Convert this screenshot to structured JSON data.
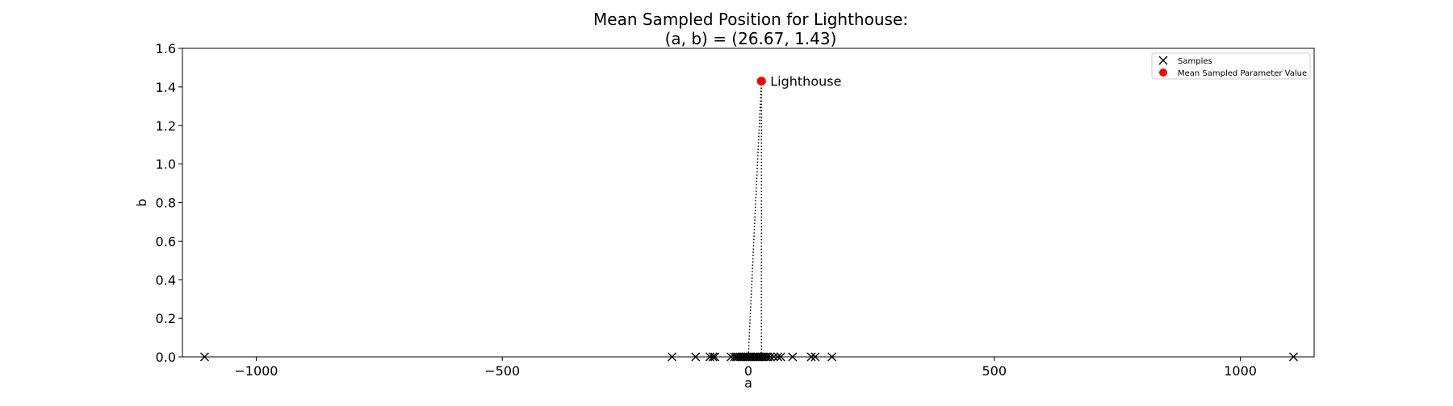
{
  "chart_data": {
    "type": "scatter",
    "title": [
      "Mean Sampled Position for Lighthouse:",
      "(a, b) = (26.67, 1.43)"
    ],
    "xlabel": "a",
    "ylabel": "b",
    "xlim": [
      -1150,
      1150
    ],
    "ylim": [
      0.0,
      1.6
    ],
    "x_ticks": [
      -1000,
      -500,
      0,
      500,
      1000
    ],
    "x_tick_labels": [
      "−1000",
      "−500",
      "0",
      "500",
      "1000"
    ],
    "y_ticks": [
      0.0,
      0.2,
      0.4,
      0.6,
      0.8,
      1.0,
      1.2,
      1.4,
      1.6
    ],
    "y_tick_labels": [
      "0.0",
      "0.2",
      "0.4",
      "0.6",
      "0.8",
      "1.0",
      "1.2",
      "1.4",
      "1.6"
    ],
    "grid": false,
    "legend": {
      "placement": "top-right",
      "entries": [
        "Samples",
        "Mean Sampled Parameter Value"
      ]
    },
    "series": [
      {
        "name": "Samples",
        "marker": "x",
        "color": "#000000",
        "points": [
          {
            "x": -1105,
            "y": 0
          },
          {
            "x": -155,
            "y": 0
          },
          {
            "x": -107,
            "y": 0
          },
          {
            "x": -78,
            "y": 0
          },
          {
            "x": -72,
            "y": 0
          },
          {
            "x": -68,
            "y": 0
          },
          {
            "x": -35,
            "y": 0
          },
          {
            "x": -28,
            "y": 0
          },
          {
            "x": -24,
            "y": 0
          },
          {
            "x": -20,
            "y": 0
          },
          {
            "x": -16,
            "y": 0
          },
          {
            "x": -12,
            "y": 0
          },
          {
            "x": -8,
            "y": 0
          },
          {
            "x": -4,
            "y": 0
          },
          {
            "x": 0,
            "y": 0
          },
          {
            "x": 4,
            "y": 0
          },
          {
            "x": 8,
            "y": 0
          },
          {
            "x": 12,
            "y": 0
          },
          {
            "x": 16,
            "y": 0
          },
          {
            "x": 20,
            "y": 0
          },
          {
            "x": 24,
            "y": 0
          },
          {
            "x": 28,
            "y": 0
          },
          {
            "x": 32,
            "y": 0
          },
          {
            "x": 36,
            "y": 0
          },
          {
            "x": 40,
            "y": 0
          },
          {
            "x": 45,
            "y": 0
          },
          {
            "x": 52,
            "y": 0
          },
          {
            "x": 60,
            "y": 0
          },
          {
            "x": 66,
            "y": 0
          },
          {
            "x": 90,
            "y": 0
          },
          {
            "x": 128,
            "y": 0
          },
          {
            "x": 136,
            "y": 0
          },
          {
            "x": 170,
            "y": 0
          },
          {
            "x": 1108,
            "y": 0
          }
        ]
      },
      {
        "name": "Mean Sampled Parameter Value",
        "marker": "o",
        "color": "#ff0000",
        "points": [
          {
            "x": 26.67,
            "y": 1.43
          }
        ]
      }
    ],
    "guide_lines": {
      "from": {
        "x": 26.67,
        "y": 1.43
      },
      "to": [
        {
          "x": 0,
          "y": 0
        },
        {
          "x": 26.67,
          "y": 0
        }
      ],
      "style": "dotted",
      "color": "#000000"
    },
    "annotations": [
      {
        "text": "Lighthouse",
        "x": 26.67,
        "y": 1.43
      }
    ]
  }
}
